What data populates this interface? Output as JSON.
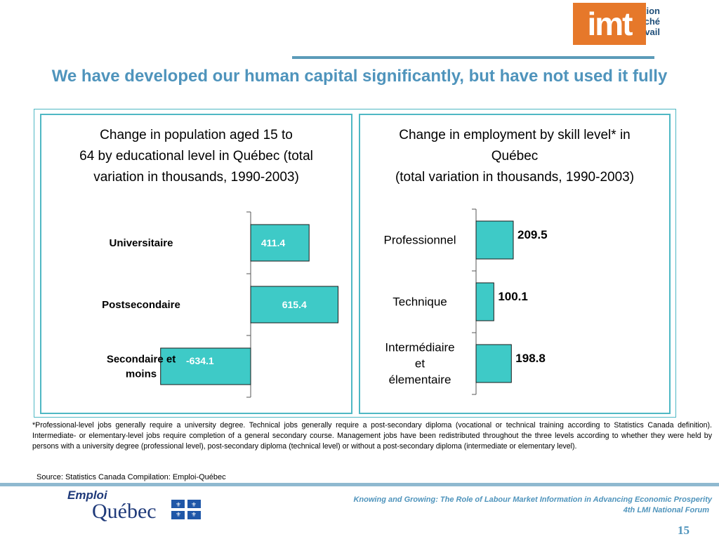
{
  "header": {
    "logo_text_lines": [
      "Information",
      "sur le marché",
      "du travail"
    ],
    "logo_mark": "imt",
    "title": "We have developed our human capital significantly, but have not used it fully"
  },
  "colors": {
    "bar": "#3ecac7",
    "frame": "#4fb8c4",
    "title": "#4f94bc",
    "logo_box": "#e6782a"
  },
  "chart_data": [
    {
      "type": "bar",
      "orientation": "horizontal",
      "title": "Change in population aged 15 to 64 by educational level in Québec (total variation in thousands, 1990-2003)",
      "title_lines": [
        "Change in population aged 15 to",
        "64 by educational level in Québec (total",
        "variation in thousands, 1990-2003)"
      ],
      "categories": [
        "Universitaire",
        "Postsecondaire",
        "Secondaire et moins"
      ],
      "category_lines": [
        [
          "Universitaire"
        ],
        [
          "Postsecondaire"
        ],
        [
          "Secondaire et",
          "moins"
        ]
      ],
      "values": [
        411.4,
        615.4,
        -634.1
      ],
      "data_labels": [
        "411.4",
        "615.4",
        "-634.1"
      ],
      "xlim": [
        -800,
        800
      ]
    },
    {
      "type": "bar",
      "orientation": "horizontal",
      "title": "Change in employment by skill level* in Québec (total variation in thousands, 1990-2003)",
      "title_lines": [
        "Change in employment by skill level* in",
        "Québec",
        "(total variation in thousands, 1990-2003)"
      ],
      "categories": [
        "Professionnel",
        "Technique",
        "Intermédiaire et élementaire"
      ],
      "category_lines": [
        [
          "Professionnel"
        ],
        [
          "Technique"
        ],
        [
          "Intermédiaire",
          "et",
          "élementaire"
        ]
      ],
      "values": [
        209.5,
        100.1,
        198.8
      ],
      "data_labels": [
        "209.5",
        "100.1",
        "198.8"
      ],
      "xlim": [
        0,
        800
      ]
    }
  ],
  "footnote": "*Professional-level jobs generally require a university degree. Technical jobs generally require a post-secondary diploma (vocational or technical training according to Statistics Canada definition). Intermediate- or elementary-level jobs require completion of a general secondary course. Management jobs have been redistributed throughout the three levels according to whether they were held by persons with a university degree (professional level), post-secondary diploma (technical level) or without a post-secondary diploma (intermediate or elementary level).",
  "source": "Source: Statistics Canada  Compilation: Emploi-Québec",
  "footer": {
    "emploi": "Emploi",
    "quebec": "Québec",
    "line1": "Knowing and Growing: The Role of Labour Market Information in Advancing Economic Prosperity",
    "line2": "4th LMI National Forum",
    "page_number": "15"
  }
}
